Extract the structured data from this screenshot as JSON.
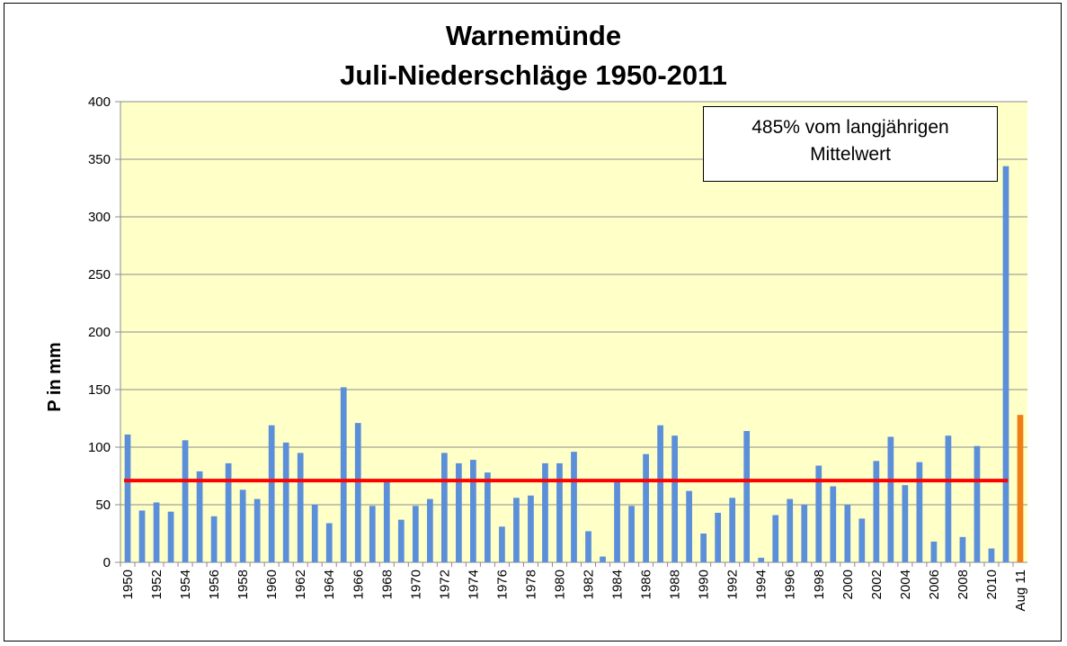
{
  "chart_data": {
    "type": "bar",
    "title": "Warnemünde",
    "subtitle": "Juli-Niederschläge 1950-2011",
    "ylabel": "P in mm",
    "xlabel": "",
    "ylim": [
      0,
      400
    ],
    "yticks": [
      0,
      50,
      100,
      150,
      200,
      250,
      300,
      350,
      400
    ],
    "categories": [
      "1950",
      "1951",
      "1952",
      "1953",
      "1954",
      "1955",
      "1956",
      "1957",
      "1958",
      "1959",
      "1960",
      "1961",
      "1962",
      "1963",
      "1964",
      "1965",
      "1966",
      "1967",
      "1968",
      "1969",
      "1970",
      "1971",
      "1972",
      "1973",
      "1974",
      "1975",
      "1976",
      "1977",
      "1978",
      "1979",
      "1980",
      "1981",
      "1982",
      "1983",
      "1984",
      "1985",
      "1986",
      "1987",
      "1988",
      "1989",
      "1990",
      "1991",
      "1992",
      "1993",
      "1994",
      "1995",
      "1996",
      "1997",
      "1998",
      "1999",
      "2000",
      "2001",
      "2002",
      "2003",
      "2004",
      "2005",
      "2006",
      "2007",
      "2008",
      "2009",
      "2010",
      "2011",
      "Aug 11"
    ],
    "tick_labels": [
      "1950",
      "",
      "1952",
      "",
      "1954",
      "",
      "1956",
      "",
      "1958",
      "",
      "1960",
      "",
      "1962",
      "",
      "1964",
      "",
      "1966",
      "",
      "1968",
      "",
      "1970",
      "",
      "1972",
      "",
      "1974",
      "",
      "1976",
      "",
      "1978",
      "",
      "1980",
      "",
      "1982",
      "",
      "1984",
      "",
      "1986",
      "",
      "1988",
      "",
      "1990",
      "",
      "1992",
      "",
      "1994",
      "",
      "1996",
      "",
      "1998",
      "",
      "2000",
      "",
      "2002",
      "",
      "2004",
      "",
      "2006",
      "",
      "2008",
      "",
      "2010",
      "",
      "Aug 11"
    ],
    "values": [
      111,
      45,
      52,
      44,
      106,
      79,
      40,
      86,
      63,
      55,
      119,
      104,
      95,
      50,
      34,
      152,
      121,
      49,
      72,
      37,
      49,
      55,
      95,
      86,
      89,
      78,
      31,
      56,
      58,
      86,
      86,
      96,
      27,
      5,
      72,
      49,
      94,
      119,
      110,
      62,
      25,
      43,
      56,
      114,
      4,
      41,
      55,
      50,
      84,
      66,
      50,
      38,
      88,
      109,
      67,
      87,
      18,
      110,
      22,
      101,
      12,
      344,
      128
    ],
    "mean_line": 71,
    "colors": {
      "bar": "#5b8fd9",
      "highlight": "#f07e17",
      "mean": "#ff0000",
      "plot_bg": "#ffffc8",
      "grid": "#8c8c8c"
    },
    "highlight_index": 62,
    "annotation": [
      "485% vom langjährigen",
      "Mittelwert"
    ],
    "grid": true,
    "legend": "none"
  }
}
